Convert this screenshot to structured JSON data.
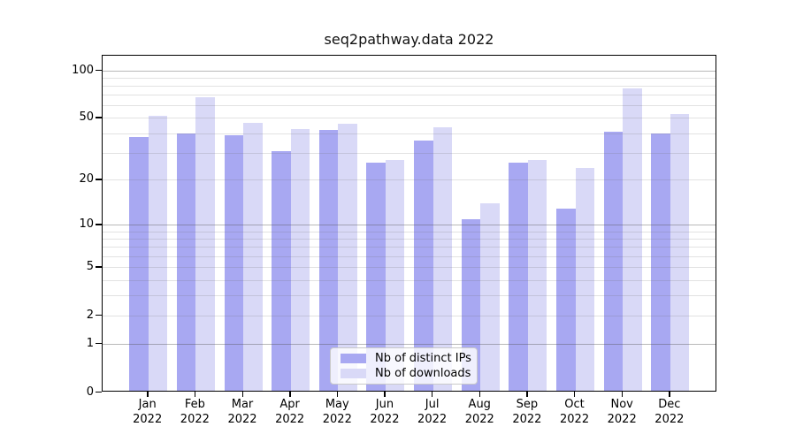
{
  "title": "seq2pathway.data 2022",
  "chart_data": {
    "type": "bar",
    "title": "seq2pathway.data 2022",
    "categories": [
      "Jan",
      "Feb",
      "Mar",
      "Apr",
      "May",
      "Jun",
      "Jul",
      "Aug",
      "Sep",
      "Oct",
      "Nov",
      "Dec"
    ],
    "x_year": "2022",
    "series": [
      {
        "name": "Nb of distinct IPs",
        "color": "#a8a8f2",
        "values": [
          38,
          40,
          39,
          31,
          42,
          26,
          36,
          11,
          26,
          13,
          41,
          40
        ]
      },
      {
        "name": "Nb of downloads",
        "color": "#d9d9f7",
        "values": [
          52,
          68,
          47,
          43,
          46,
          27,
          44,
          14,
          27,
          24,
          77,
          53
        ]
      }
    ],
    "y_ticks": [
      0,
      1,
      2,
      5,
      10,
      20,
      50,
      100
    ],
    "y_scale": "log1p",
    "ylim": [
      0,
      124
    ],
    "xlabel": "",
    "ylabel": "",
    "grid": true,
    "legend_position": "lower center"
  }
}
